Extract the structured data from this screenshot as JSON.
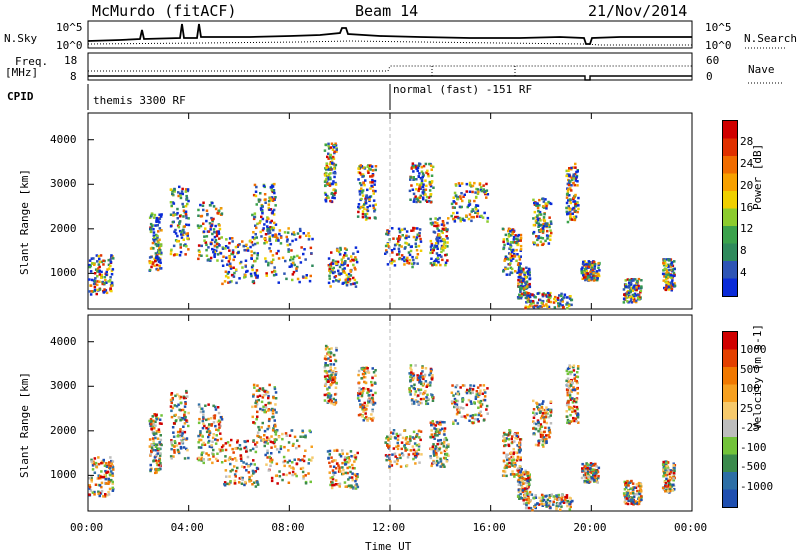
{
  "header": {
    "station": "McMurdo (fitACF)",
    "beam": "Beam 14",
    "date": "21/Nov/2014"
  },
  "top_panels": {
    "nsky_label": "N.Sky",
    "nsky_left_ticks": [
      "10^5",
      "10^0"
    ],
    "nsky_right_ticks": [
      "10^5",
      "10^0"
    ],
    "nsearch_label": "N.Search",
    "freq_label_1": "Freq.",
    "freq_label_2": "[MHz]",
    "freq_ticks": [
      "18",
      "8"
    ],
    "nave_label": "Nave",
    "nave_ticks": [
      "60",
      "0"
    ],
    "cpid_label": "CPID",
    "cpid_1": "themis 3300 RF",
    "cpid_2": "normal (fast) -151 RF"
  },
  "chart_data": [
    {
      "type": "heatmap",
      "title": "",
      "xlabel": "Time UT",
      "ylabel": "Slant Range [km]",
      "x_ticks": [
        "00:00",
        "04:00",
        "08:00",
        "12:00",
        "16:00",
        "20:00",
        "00:00"
      ],
      "y_ticks": [
        "1000",
        "2000",
        "3000",
        "4000"
      ],
      "ylim": [
        200,
        4600
      ],
      "colorbar_label": "Power [dB]",
      "colorbar_ticks": [
        "4",
        "8",
        "12",
        "16",
        "20",
        "24",
        "28"
      ],
      "colorbar_colors": [
        "#0a2bd8",
        "#2e55b5",
        "#2f8a5c",
        "#3ba24c",
        "#8ccc2e",
        "#f0d000",
        "#f7a000",
        "#f06c00",
        "#e03000",
        "#d00000"
      ]
    },
    {
      "type": "heatmap",
      "title": "",
      "xlabel": "Time UT",
      "ylabel": "Slant Range [km]",
      "x_ticks": [
        "00:00",
        "04:00",
        "08:00",
        "12:00",
        "16:00",
        "20:00",
        "00:00"
      ],
      "y_ticks": [
        "1000",
        "2000",
        "3000",
        "4000"
      ],
      "ylim": [
        200,
        4600
      ],
      "colorbar_label": "Velocity [m s-1]",
      "colorbar_ticks": [
        "1000",
        "500",
        "100",
        "25",
        "-25",
        "-100",
        "-500",
        "-1000"
      ],
      "colorbar_colors": [
        "#1f4fb0",
        "#2d6fa6",
        "#3a8a4c",
        "#72c33a",
        "#bdbdbd",
        "#f6c96b",
        "#f6a020",
        "#f07800",
        "#e34000",
        "#d00000"
      ]
    }
  ]
}
